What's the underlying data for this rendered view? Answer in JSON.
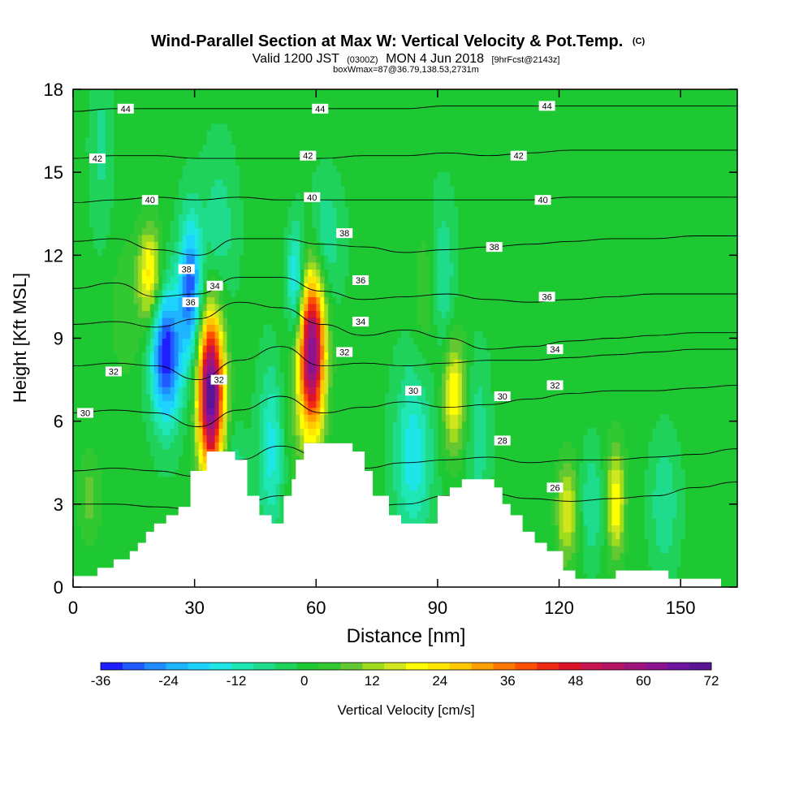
{
  "chart_data": {
    "type": "heatmap",
    "title": "Wind-Parallel Section at Max W: Vertical Velocity & Pot.Temp.",
    "title_mark": "(C)",
    "subtitle_parts": {
      "valid": "Valid 1200 JST",
      "utc": "(0300Z)",
      "date": "MON 4 Jun 2018",
      "forecast": "[9hrFcst@2143z]"
    },
    "box_line": "boxWmax=87@36.79,138.53,2731m",
    "xlabel": "Distance [nm]",
    "ylabel": "Height [Kft MSL]",
    "xlim": [
      0,
      164
    ],
    "ylim": [
      0,
      18
    ],
    "x_ticks": [
      "0",
      "30",
      "60",
      "90",
      "120",
      "150"
    ],
    "y_ticks": [
      "0",
      "3",
      "6",
      "9",
      "12",
      "15",
      "18"
    ],
    "colorbar": {
      "label": "Vertical Velocity [cm/s]",
      "ticks": [
        "-36",
        "-24",
        "-12",
        "0",
        "12",
        "24",
        "36",
        "48",
        "60",
        "72"
      ],
      "min": -36,
      "max": 72,
      "colors": [
        "#1e1eff",
        "#1e5aff",
        "#1e8cff",
        "#1eb4ff",
        "#1ed2ff",
        "#1ee6e6",
        "#1ee6b4",
        "#1edc8c",
        "#1ed25a",
        "#1ec832",
        "#32c832",
        "#64c832",
        "#a0dc1e",
        "#d2e61e",
        "#ffff00",
        "#ffe600",
        "#ffc800",
        "#ffa000",
        "#ff7800",
        "#ff5000",
        "#f02814",
        "#dc1428",
        "#c81450",
        "#b41464",
        "#a0147d",
        "#8c1491",
        "#6e14a0",
        "#5a1496"
      ],
      "background_color": "#1ec832"
    },
    "terrain": [
      [
        0,
        0.4
      ],
      [
        6,
        0.4
      ],
      [
        6,
        0.7
      ],
      [
        10,
        0.7
      ],
      [
        10,
        1.0
      ],
      [
        14,
        1.0
      ],
      [
        14,
        1.3
      ],
      [
        16,
        1.3
      ],
      [
        16,
        1.6
      ],
      [
        18,
        1.6
      ],
      [
        18,
        2.0
      ],
      [
        20,
        2.0
      ],
      [
        20,
        2.3
      ],
      [
        23,
        2.3
      ],
      [
        23,
        2.6
      ],
      [
        26,
        2.6
      ],
      [
        26,
        2.9
      ],
      [
        29,
        2.9
      ],
      [
        29,
        4.2
      ],
      [
        33,
        4.2
      ],
      [
        33,
        4.9
      ],
      [
        40,
        4.9
      ],
      [
        40,
        4.6
      ],
      [
        43,
        4.6
      ],
      [
        43,
        3.3
      ],
      [
        46,
        3.3
      ],
      [
        46,
        2.6
      ],
      [
        49,
        2.6
      ],
      [
        49,
        2.3
      ],
      [
        52,
        2.3
      ],
      [
        52,
        3.3
      ],
      [
        54,
        3.3
      ],
      [
        54,
        3.9
      ],
      [
        55,
        3.9
      ],
      [
        55,
        4.6
      ],
      [
        57,
        4.6
      ],
      [
        57,
        5.2
      ],
      [
        69,
        5.2
      ],
      [
        69,
        4.9
      ],
      [
        72,
        4.9
      ],
      [
        72,
        4.2
      ],
      [
        74,
        4.2
      ],
      [
        74,
        3.3
      ],
      [
        78,
        3.3
      ],
      [
        78,
        2.6
      ],
      [
        81,
        2.6
      ],
      [
        81,
        2.3
      ],
      [
        90,
        2.3
      ],
      [
        90,
        3.3
      ],
      [
        93,
        3.3
      ],
      [
        93,
        3.6
      ],
      [
        96,
        3.6
      ],
      [
        96,
        3.9
      ],
      [
        104,
        3.9
      ],
      [
        104,
        3.6
      ],
      [
        106,
        3.6
      ],
      [
        106,
        3.0
      ],
      [
        108,
        3.0
      ],
      [
        108,
        2.6
      ],
      [
        111,
        2.6
      ],
      [
        111,
        2.0
      ],
      [
        114,
        2.0
      ],
      [
        114,
        1.6
      ],
      [
        117,
        1.6
      ],
      [
        117,
        1.3
      ],
      [
        121,
        1.3
      ],
      [
        121,
        0.6
      ],
      [
        124,
        0.6
      ],
      [
        124,
        0.3
      ],
      [
        134,
        0.3
      ],
      [
        134,
        0.6
      ],
      [
        147,
        0.6
      ],
      [
        147,
        0.3
      ],
      [
        160,
        0.3
      ],
      [
        160,
        0
      ]
    ],
    "updrafts": [
      {
        "x": 34,
        "y": 7.0,
        "sx": 2.2,
        "sy": 2.0,
        "w": 72
      },
      {
        "x": 59,
        "y": 8.5,
        "sx": 2.2,
        "sy": 2.0,
        "w": 64
      },
      {
        "x": 19,
        "y": 11.3,
        "sx": 2.0,
        "sy": 1.2,
        "w": 24
      },
      {
        "x": 94,
        "y": 7.0,
        "sx": 2.0,
        "sy": 1.5,
        "w": 22
      },
      {
        "x": 122,
        "y": 2.7,
        "sx": 1.8,
        "sy": 1.3,
        "w": 18
      },
      {
        "x": 134,
        "y": 3.1,
        "sx": 1.6,
        "sy": 1.4,
        "w": 22
      },
      {
        "x": 36,
        "y": 3.2,
        "sx": 1.4,
        "sy": 0.8,
        "w": 16
      },
      {
        "x": 88,
        "y": 10.5,
        "sx": 2.5,
        "sy": 1.8,
        "w": 8
      },
      {
        "x": 55,
        "y": 7.5,
        "sx": 3.0,
        "sy": 4.0,
        "w": 5
      },
      {
        "x": 13,
        "y": 10.0,
        "sx": 3.0,
        "sy": 2.0,
        "w": 5
      },
      {
        "x": 4,
        "y": 3.2,
        "sx": 2.0,
        "sy": 1.2,
        "w": 8
      }
    ],
    "downdrafts": [
      {
        "x": 23,
        "y": 8.4,
        "sx": 2.6,
        "sy": 1.7,
        "w": -36
      },
      {
        "x": 29,
        "y": 10.8,
        "sx": 2.0,
        "sy": 1.8,
        "w": -30
      },
      {
        "x": 55,
        "y": 11.0,
        "sx": 1.6,
        "sy": 1.5,
        "w": -22
      },
      {
        "x": 49,
        "y": 5.0,
        "sx": 2.2,
        "sy": 2.2,
        "w": -15
      },
      {
        "x": 84,
        "y": 4.8,
        "sx": 3.2,
        "sy": 2.2,
        "w": -16
      },
      {
        "x": 91,
        "y": 11.0,
        "sx": 2.2,
        "sy": 2.0,
        "w": -12
      },
      {
        "x": 62,
        "y": 12.5,
        "sx": 3.0,
        "sy": 1.5,
        "w": -10
      },
      {
        "x": 36,
        "y": 13.0,
        "sx": 3.0,
        "sy": 2.0,
        "w": -8
      },
      {
        "x": 40,
        "y": 3.8,
        "sx": 2.0,
        "sy": 1.2,
        "w": -10
      },
      {
        "x": 100,
        "y": 5.5,
        "sx": 2.0,
        "sy": 2.0,
        "w": -8
      },
      {
        "x": 128,
        "y": 3.0,
        "sx": 2.0,
        "sy": 1.4,
        "w": -9
      },
      {
        "x": 146,
        "y": 3.0,
        "sx": 2.5,
        "sy": 1.6,
        "w": -9
      },
      {
        "x": 7,
        "y": 16.0,
        "sx": 2.0,
        "sy": 2.5,
        "w": -6
      }
    ],
    "isentropes": [
      {
        "theta": 26,
        "y": [
          3.0,
          3.0,
          2.9,
          2.8,
          3.0,
          3.3,
          3.0,
          2.9,
          3.0,
          3.3,
          3.4,
          3.2,
          3.1,
          3.2,
          3.3,
          3.6,
          3.8
        ]
      },
      {
        "theta": 28,
        "y": [
          4.2,
          4.3,
          4.2,
          4.0,
          4.6,
          5.1,
          4.7,
          4.3,
          4.5,
          4.6,
          4.7,
          4.5,
          4.6,
          4.6,
          4.7,
          4.8,
          5.0
        ]
      },
      {
        "theta": 30,
        "y": [
          6.3,
          6.4,
          6.3,
          5.8,
          6.4,
          6.9,
          6.3,
          6.5,
          6.7,
          6.5,
          6.6,
          6.8,
          7.0,
          7.1,
          7.1,
          7.2,
          7.3
        ]
      },
      {
        "theta": 32,
        "y": [
          8.0,
          8.1,
          8.0,
          7.5,
          8.2,
          8.7,
          8.0,
          8.1,
          8.0,
          8.1,
          8.2,
          8.2,
          8.3,
          8.4,
          8.5,
          8.6,
          8.6
        ]
      },
      {
        "theta": 34,
        "y": [
          9.5,
          9.6,
          9.4,
          9.7,
          10.3,
          10.1,
          9.5,
          9.1,
          9.3,
          9.0,
          8.6,
          8.7,
          8.9,
          9.0,
          9.1,
          9.2,
          9.2
        ]
      },
      {
        "theta": 36,
        "y": [
          10.8,
          11.0,
          10.5,
          10.6,
          11.2,
          11.2,
          10.7,
          10.4,
          10.5,
          10.6,
          10.4,
          10.3,
          10.4,
          10.5,
          10.6,
          10.6,
          10.6
        ]
      },
      {
        "theta": 38,
        "y": [
          12.5,
          12.6,
          12.2,
          12.0,
          12.6,
          12.6,
          12.4,
          12.3,
          12.1,
          12.2,
          12.3,
          12.4,
          12.5,
          12.6,
          12.6,
          12.7,
          12.7
        ]
      },
      {
        "theta": 40,
        "y": [
          13.9,
          14.0,
          14.1,
          14.0,
          14.1,
          14.0,
          14.0,
          14.0,
          14.0,
          14.0,
          14.0,
          14.0,
          14.1,
          14.1,
          14.1,
          14.1,
          14.1
        ]
      },
      {
        "theta": 42,
        "y": [
          15.5,
          15.6,
          15.6,
          15.5,
          15.5,
          15.5,
          15.5,
          15.6,
          15.6,
          15.7,
          15.6,
          15.7,
          15.8,
          15.8,
          15.8,
          15.8,
          15.8
        ]
      },
      {
        "theta": 44,
        "y": [
          17.2,
          17.3,
          17.3,
          17.3,
          17.3,
          17.3,
          17.3,
          17.3,
          17.3,
          17.4,
          17.4,
          17.4,
          17.4,
          17.4,
          17.4,
          17.4,
          17.4
        ]
      }
    ],
    "contour_labels": [
      {
        "text": "44",
        "x": 13,
        "y": 17.3
      },
      {
        "text": "44",
        "x": 61,
        "y": 17.3
      },
      {
        "text": "44",
        "x": 117,
        "y": 17.4
      },
      {
        "text": "42",
        "x": 6,
        "y": 15.5
      },
      {
        "text": "42",
        "x": 58,
        "y": 15.6
      },
      {
        "text": "42",
        "x": 110,
        "y": 15.6
      },
      {
        "text": "40",
        "x": 19,
        "y": 14.0
      },
      {
        "text": "40",
        "x": 59,
        "y": 14.1
      },
      {
        "text": "40",
        "x": 116,
        "y": 14.0
      },
      {
        "text": "38",
        "x": 28,
        "y": 11.5
      },
      {
        "text": "38",
        "x": 67,
        "y": 12.8
      },
      {
        "text": "38",
        "x": 104,
        "y": 12.3
      },
      {
        "text": "36",
        "x": 29,
        "y": 10.3
      },
      {
        "text": "36",
        "x": 71,
        "y": 11.1
      },
      {
        "text": "36",
        "x": 117,
        "y": 10.5
      },
      {
        "text": "34",
        "x": 35,
        "y": 10.9
      },
      {
        "text": "34",
        "x": 71,
        "y": 9.6
      },
      {
        "text": "34",
        "x": 119,
        "y": 8.6
      },
      {
        "text": "32",
        "x": 10,
        "y": 7.8
      },
      {
        "text": "32",
        "x": 36,
        "y": 7.5
      },
      {
        "text": "32",
        "x": 67,
        "y": 8.5
      },
      {
        "text": "32",
        "x": 119,
        "y": 7.3
      },
      {
        "text": "30",
        "x": 3,
        "y": 6.3
      },
      {
        "text": "30",
        "x": 84,
        "y": 7.1
      },
      {
        "text": "30",
        "x": 106,
        "y": 6.9
      },
      {
        "text": "28",
        "x": 106,
        "y": 5.3
      },
      {
        "text": "26",
        "x": 119,
        "y": 3.6
      }
    ]
  }
}
